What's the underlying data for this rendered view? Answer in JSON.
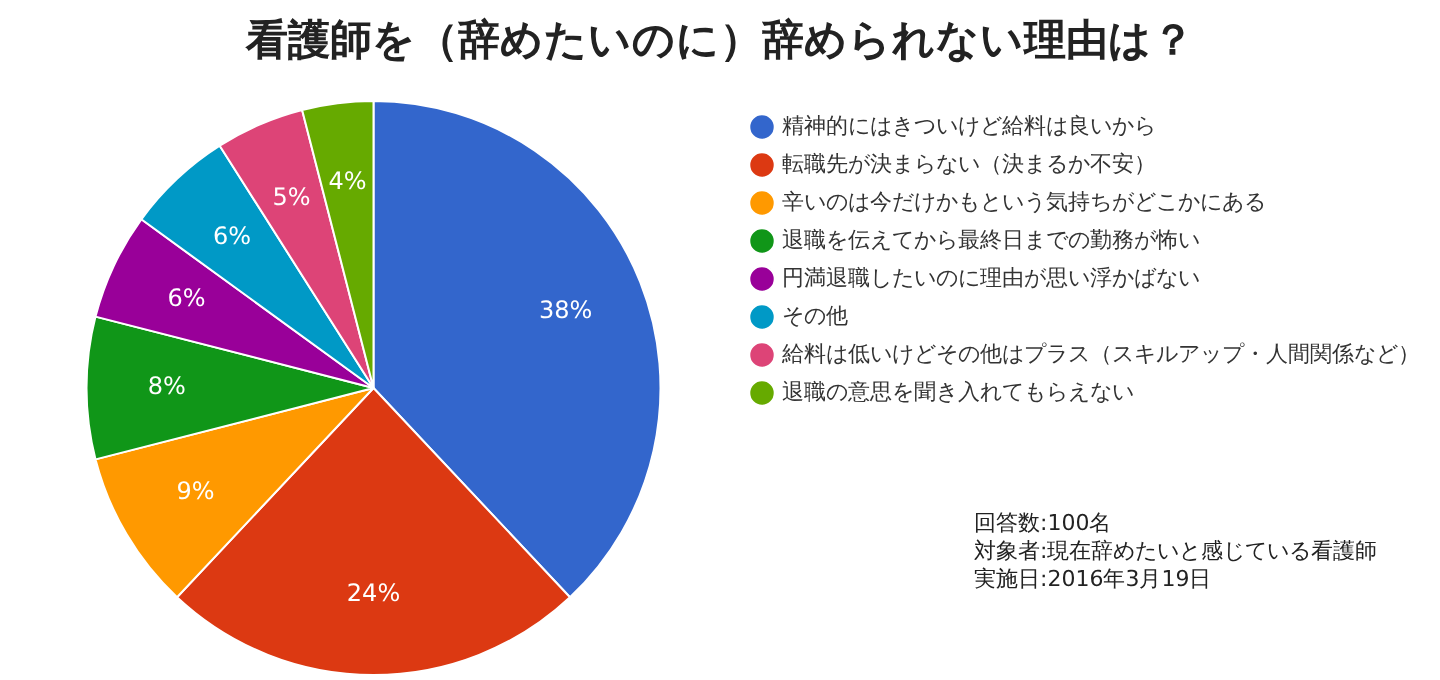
{
  "chart_data": {
    "type": "pie",
    "title": "看護師を（辞めたいのに）辞められない理由は？",
    "categories": [
      "精神的にはきついけど給料は良いから",
      "転職先が決まらない（決まるか不安）",
      "辛いのは今だけかもという気持ちがどこかにある",
      "退職を伝えてから最終日までの勤務が怖い",
      "円満退職したいのに理由が思い浮かばない",
      "その他",
      "給料は低いけどその他はプラス（スキルアップ・人間関係など）",
      "退職の意思を聞き入れてもらえない"
    ],
    "values": [
      38,
      24,
      9,
      8,
      6,
      6,
      5,
      4
    ],
    "value_labels": [
      "38%",
      "24%",
      "9%",
      "8%",
      "6%",
      "6%",
      "5%",
      "4%"
    ],
    "colors": [
      "#3366cc",
      "#dc3912",
      "#ff9900",
      "#109618",
      "#990099",
      "#0099c6",
      "#dd4477",
      "#66aa00"
    ],
    "legend": "right",
    "annotations": [
      "回答数:100名",
      "対象者:現在辞めたいと感じている看護師",
      "実施日:2016年3月19日"
    ]
  }
}
